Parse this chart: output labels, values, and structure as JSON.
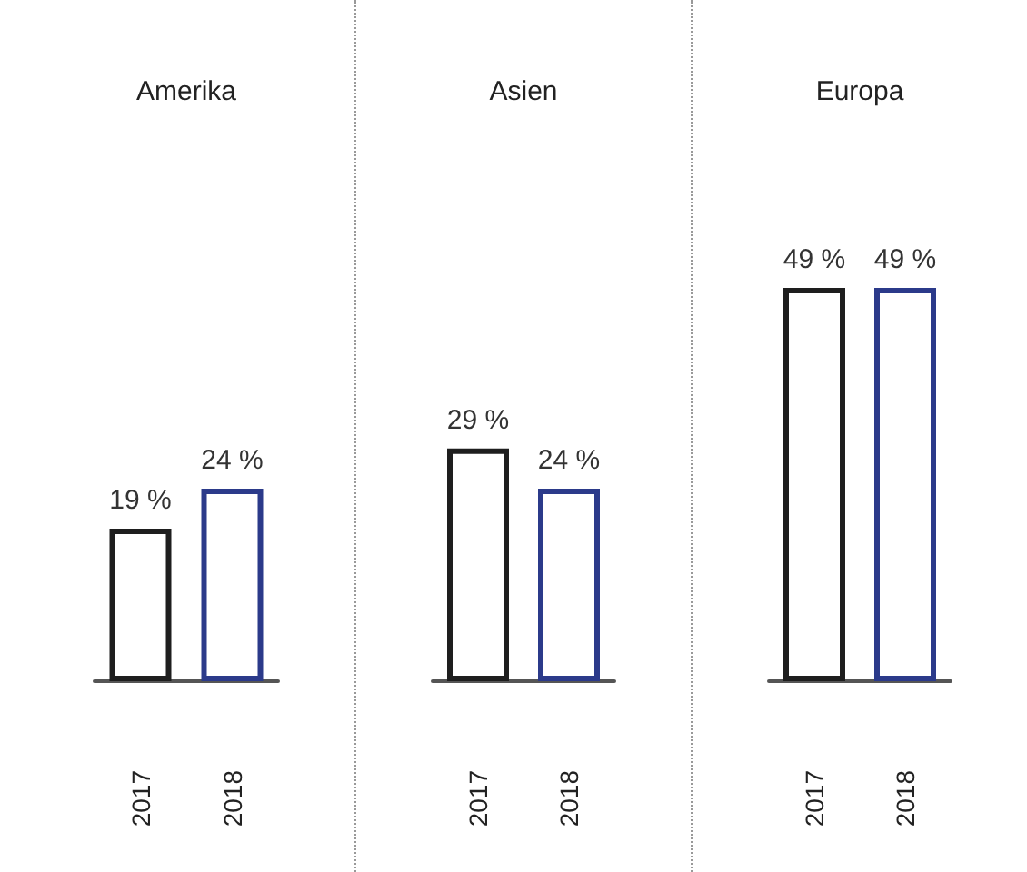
{
  "chart_data": [
    {
      "type": "bar",
      "title": "Amerika",
      "categories": [
        "2017",
        "2018"
      ],
      "values": [
        19,
        24
      ],
      "colors": [
        "#1e1e1e",
        "#2b3a8a"
      ],
      "value_labels": [
        "19 %",
        "24 %"
      ],
      "tick_labels": "x"
    },
    {
      "type": "bar",
      "title": "Asien",
      "categories": [
        "2017",
        "2018"
      ],
      "values": [
        29,
        24
      ],
      "colors": [
        "#1e1e1e",
        "#2b3a8a"
      ],
      "value_labels": [
        "29 %",
        "24 %"
      ],
      "tick_labels": "x"
    },
    {
      "type": "bar",
      "title": "Europa",
      "categories": [
        "2017",
        "2018"
      ],
      "values": [
        49,
        49
      ],
      "colors": [
        "#1e1e1e",
        "#2b3a8a"
      ],
      "value_labels": [
        "49 %",
        "49 %"
      ],
      "tick_labels": "x"
    }
  ]
}
